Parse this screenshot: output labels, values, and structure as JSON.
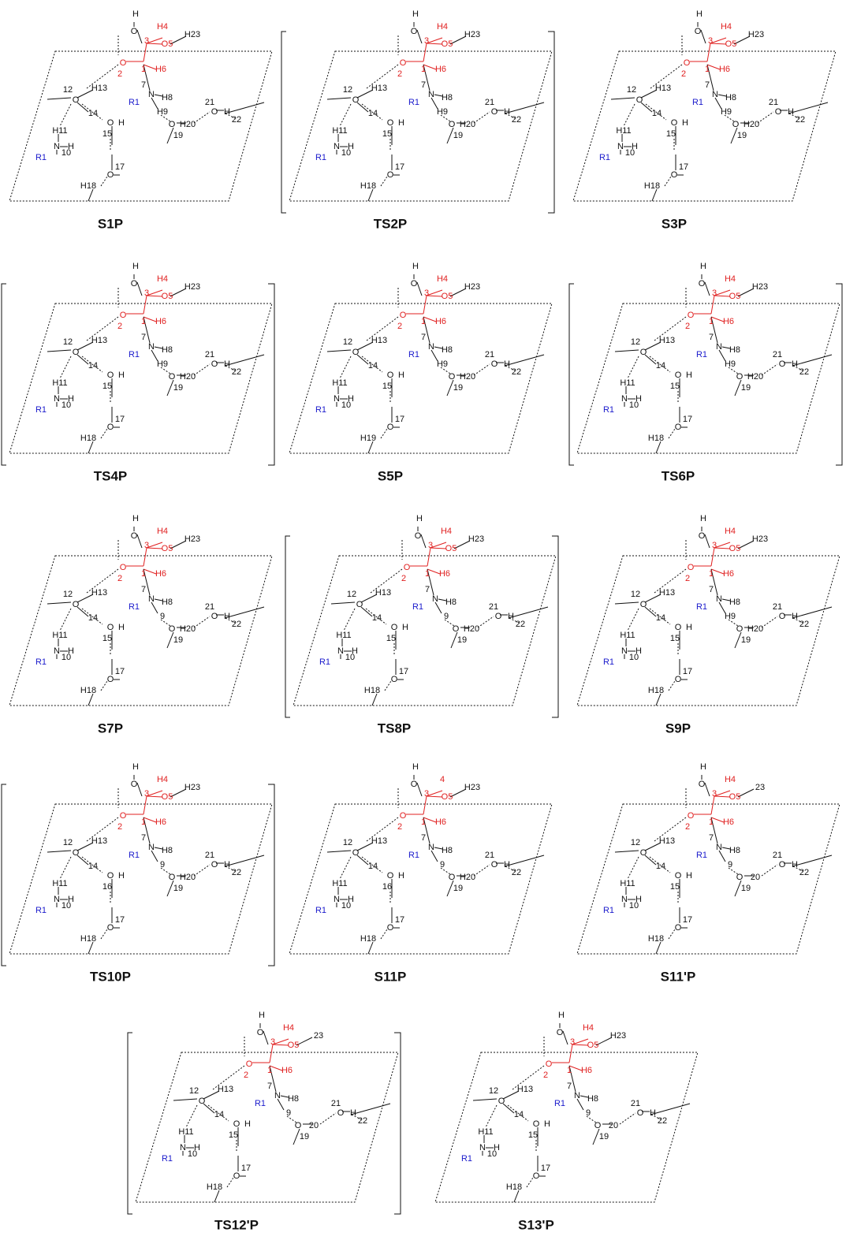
{
  "panels": [
    {
      "caption": "S1P",
      "bracketed": false,
      "atoms": [
        "H",
        "O",
        "H4",
        "3",
        "O5",
        "H23",
        "O",
        "2",
        "1",
        "H6",
        "7",
        "N",
        "H8",
        "R1",
        "H9",
        "12",
        "O",
        "H13",
        "14",
        "O",
        "H",
        "15",
        "H11",
        "N",
        "10",
        "H",
        "R1",
        "O",
        "17",
        "H18",
        "O",
        "19",
        "H20",
        "21",
        "O",
        "H",
        "22"
      ]
    },
    {
      "caption": "TS2P",
      "bracketed": true,
      "atoms": [
        "H",
        "O",
        "H4",
        "3",
        "O5",
        "H23",
        "O",
        "2",
        "1",
        "H6",
        "7",
        "N",
        "H8",
        "R1",
        "H9",
        "12",
        "O",
        "H13",
        "14",
        "O",
        "H",
        "15",
        "H11",
        "N",
        "10",
        "H",
        "R1",
        "O",
        "17",
        "H18",
        "O",
        "19",
        "H20",
        "21",
        "O",
        "H",
        "22"
      ]
    },
    {
      "caption": "S3P",
      "bracketed": false,
      "atoms": [
        "H",
        "O",
        "H4",
        "3",
        "O5",
        "H23",
        "O",
        "2",
        "1",
        "H6",
        "7",
        "N",
        "H8",
        "R1",
        "H9",
        "12",
        "O",
        "H13",
        "14",
        "O",
        "H",
        "15",
        "H11",
        "N",
        "10",
        "H",
        "R1",
        "O",
        "17",
        "H18",
        "O",
        "19",
        "H20",
        "21",
        "O",
        "H",
        "22"
      ]
    },
    {
      "caption": "TS4P",
      "bracketed": true,
      "atoms": [
        "H",
        "O",
        "H4",
        "3",
        "O5",
        "H23",
        "O",
        "2",
        "1",
        "H6",
        "7",
        "N",
        "H8",
        "R1",
        "H9",
        "12",
        "O",
        "H13",
        "14",
        "O",
        "H",
        "15",
        "H11",
        "N",
        "10",
        "H",
        "R1",
        "O",
        "17",
        "H18",
        "O",
        "19",
        "H20",
        "21",
        "O",
        "H",
        "22"
      ]
    },
    {
      "caption": "S5P",
      "bracketed": false,
      "atoms": [
        "H",
        "O",
        "H4",
        "3",
        "O5",
        "H23",
        "O",
        "2",
        "1",
        "H6",
        "7",
        "N",
        "H8",
        "R1",
        "H9",
        "12",
        "O",
        "H13",
        "14",
        "O",
        "H",
        "15",
        "H11",
        "N",
        "10",
        "H",
        "R1",
        "O",
        "17",
        "H19",
        "O",
        "19",
        "H20",
        "21",
        "O",
        "H",
        "22"
      ]
    },
    {
      "caption": "TS6P",
      "bracketed": true,
      "atoms": [
        "H",
        "O",
        "H4",
        "3",
        "O5",
        "H23",
        "O",
        "2",
        "1",
        "H6",
        "7",
        "N",
        "H8",
        "R1",
        "H9",
        "12",
        "O",
        "H13",
        "14",
        "O",
        "H",
        "15",
        "H11",
        "N",
        "10",
        "H",
        "R1",
        "O",
        "17",
        "H18",
        "O",
        "19",
        "H20",
        "21",
        "O",
        "H",
        "22"
      ]
    },
    {
      "caption": "S7P",
      "bracketed": false,
      "atoms": [
        "H",
        "O",
        "H4",
        "3",
        "O5",
        "H23",
        "O",
        "2",
        "1",
        "H6",
        "7",
        "N",
        "H8",
        "R1",
        "9",
        "12",
        "O",
        "H13",
        "14",
        "O",
        "H",
        "15",
        "H11",
        "N",
        "10",
        "H",
        "R1",
        "O",
        "17",
        "H18",
        "O",
        "19",
        "H20",
        "21",
        "O",
        "H",
        "22"
      ]
    },
    {
      "caption": "TS8P",
      "bracketed": true,
      "atoms": [
        "H",
        "O",
        "H4",
        "3",
        "O5",
        "H23",
        "O",
        "2",
        "1",
        "H6",
        "7",
        "N",
        "H8",
        "R1",
        "9",
        "12",
        "O",
        "H13",
        "14",
        "O",
        "H",
        "15",
        "H11",
        "N",
        "10",
        "H",
        "R1",
        "O",
        "17",
        "H18",
        "O",
        "19",
        "H20",
        "21",
        "O",
        "H",
        "22"
      ]
    },
    {
      "caption": "S9P",
      "bracketed": false,
      "atoms": [
        "H",
        "O",
        "H4",
        "3",
        "O5",
        "H23",
        "O",
        "2",
        "1",
        "H6",
        "7",
        "N",
        "H8",
        "R1",
        "H9",
        "12",
        "O",
        "H13",
        "14",
        "O",
        "H",
        "15",
        "H11",
        "N",
        "10",
        "H",
        "R1",
        "O",
        "17",
        "H18",
        "O",
        "19",
        "H20",
        "21",
        "O",
        "H",
        "22"
      ]
    },
    {
      "caption": "TS10P",
      "bracketed": true,
      "atoms": [
        "H",
        "O",
        "H4",
        "3",
        "O5",
        "H23",
        "O",
        "2",
        "1",
        "H6",
        "7",
        "N",
        "H8",
        "R1",
        "9",
        "12",
        "O",
        "H13",
        "14",
        "O",
        "H",
        "16",
        "H11",
        "N",
        "10",
        "H",
        "R1",
        "O",
        "17",
        "H18",
        "O",
        "19",
        "H20",
        "21",
        "O",
        "H",
        "22"
      ]
    },
    {
      "caption": "S11P",
      "bracketed": false,
      "atoms": [
        "H",
        "O",
        "4",
        "3",
        "O5",
        "H23",
        "O",
        "2",
        "1",
        "H6",
        "7",
        "N",
        "H8",
        "R1",
        "9",
        "12",
        "O",
        "H13",
        "14",
        "O",
        "H",
        "16",
        "H11",
        "N",
        "10",
        "H",
        "R1",
        "O",
        "17",
        "H18",
        "O",
        "19",
        "H20",
        "21",
        "O",
        "H",
        "22"
      ]
    },
    {
      "caption": "S11'P",
      "bracketed": false,
      "atoms": [
        "H",
        "O",
        "H4",
        "3",
        "O5",
        "23",
        "O",
        "2",
        "1",
        "H6",
        "7",
        "N",
        "H8",
        "R1",
        "9",
        "12",
        "O",
        "H13",
        "14",
        "O",
        "H",
        "15",
        "H11",
        "N",
        "10",
        "H",
        "R1",
        "O",
        "17",
        "H18",
        "O",
        "19",
        "20",
        "21",
        "O",
        "H",
        "22"
      ]
    },
    {
      "caption": "TS12'P",
      "bracketed": true,
      "atoms": [
        "H",
        "O",
        "H4",
        "3",
        "O5",
        "23",
        "O",
        "2",
        "1",
        "H6",
        "7",
        "N",
        "H8",
        "R1",
        "9",
        "12",
        "O",
        "H13",
        "14",
        "O",
        "H",
        "15",
        "H11",
        "N",
        "10",
        "H",
        "R1",
        "O",
        "17",
        "H18",
        "O",
        "19",
        "20",
        "21",
        "O",
        "H",
        "22"
      ]
    },
    {
      "caption": "S13'P",
      "bracketed": false,
      "atoms": [
        "H",
        "O",
        "H4",
        "3",
        "O5",
        "H23",
        "O",
        "2",
        "1",
        "H6",
        "7",
        "N",
        "H8",
        "R1",
        "9",
        "12",
        "O",
        "H13",
        "14",
        "O",
        "H",
        "15",
        "H11",
        "N",
        "10",
        "H",
        "R1",
        "O",
        "17",
        "H18",
        "O",
        "19",
        "20",
        "21",
        "O",
        "H",
        "22"
      ]
    }
  ]
}
